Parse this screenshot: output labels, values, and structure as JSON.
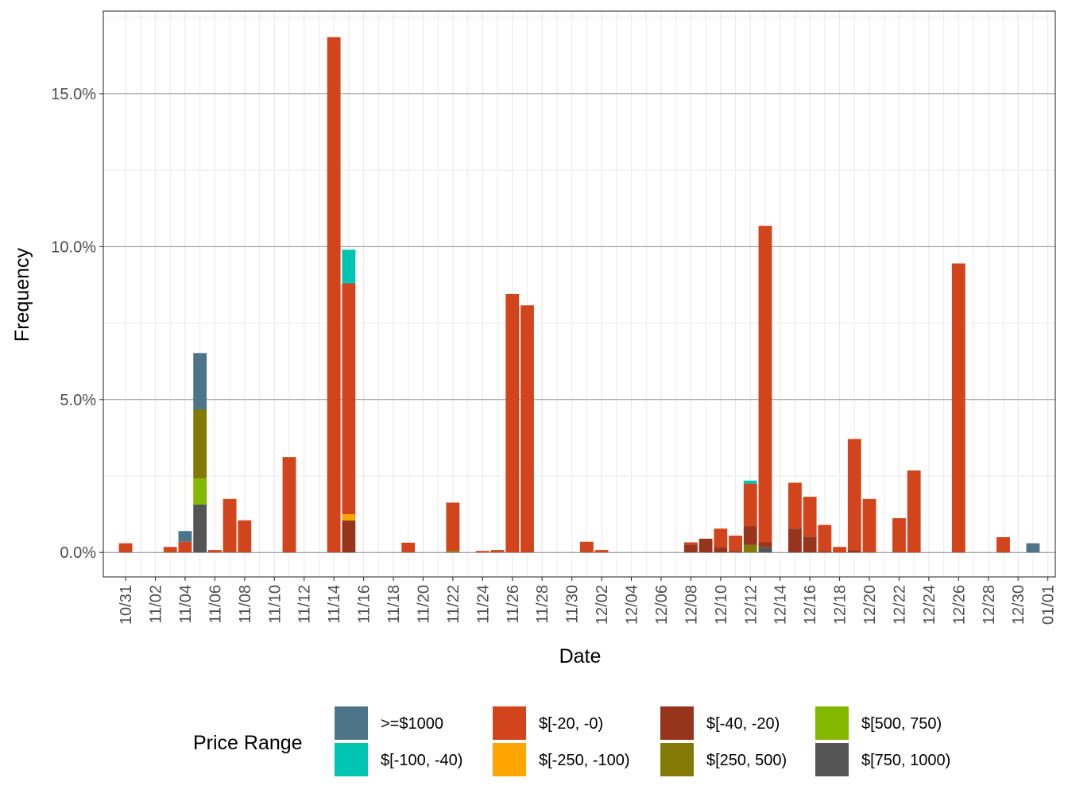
{
  "chart_data": {
    "type": "bar",
    "stacked": true,
    "xlabel": "Date",
    "ylabel": "Frequency",
    "x_tick_labels": [
      "10/31",
      "11/02",
      "11/04",
      "11/06",
      "11/08",
      "11/10",
      "11/12",
      "11/14",
      "11/16",
      "11/18",
      "11/20",
      "11/22",
      "11/24",
      "11/26",
      "11/28",
      "11/30",
      "12/02",
      "12/04",
      "12/06",
      "12/08",
      "12/10",
      "12/12",
      "12/14",
      "12/16",
      "12/18",
      "12/20",
      "12/22",
      "12/24",
      "12/26",
      "12/28",
      "12/30",
      "01/01"
    ],
    "x_range": [
      "10/30",
      "01/01"
    ],
    "y_ticks": [
      0,
      5,
      10,
      15
    ],
    "y_tick_labels": [
      "0.0%",
      "5.0%",
      "10.0%",
      "15.0%"
    ],
    "ylim": [
      -0.8,
      17.7
    ],
    "y_unit": "percent",
    "grid": true,
    "legend": {
      "title": "Price Range",
      "position": "bottom",
      "entries": [
        ">=$1000",
        "$[-100, -40)",
        "$[-20, -0)",
        "$[-250, -100)",
        "$[-40, -20)",
        "$[250, 500)",
        "$[500, 750)",
        "$[750, 1000)"
      ]
    },
    "series": [
      {
        "name": ">=$1000",
        "color": "#4e7489",
        "points": [
          [
            "11/04",
            0.35
          ],
          [
            "11/05",
            1.85
          ],
          [
            "12/31",
            0.3
          ]
        ]
      },
      {
        "name": "$[-100, -40)",
        "color": "#00c5b3",
        "points": [
          [
            "11/15",
            1.1
          ],
          [
            "12/12",
            0.1
          ]
        ]
      },
      {
        "name": "$[-20, -0)",
        "color": "#d2441c",
        "points": [
          [
            "10/31",
            0.3
          ],
          [
            "11/03",
            0.18
          ],
          [
            "11/04",
            0.35
          ],
          [
            "11/06",
            0.08
          ],
          [
            "11/07",
            1.75
          ],
          [
            "11/08",
            1.05
          ],
          [
            "11/11",
            3.12
          ],
          [
            "11/14",
            16.85
          ],
          [
            "11/15",
            7.55
          ],
          [
            "11/19",
            0.32
          ],
          [
            "11/22",
            1.58
          ],
          [
            "11/24",
            0.05
          ],
          [
            "11/25",
            0.08
          ],
          [
            "11/26",
            8.45
          ],
          [
            "11/27",
            8.08
          ],
          [
            "12/01",
            0.35
          ],
          [
            "12/02",
            0.08
          ],
          [
            "12/08",
            0.08
          ],
          [
            "12/10",
            0.6
          ],
          [
            "12/11",
            0.5
          ],
          [
            "12/12",
            1.4
          ],
          [
            "12/13",
            10.35
          ],
          [
            "12/15",
            1.5
          ],
          [
            "12/16",
            1.3
          ],
          [
            "12/17",
            0.85
          ],
          [
            "12/18",
            0.18
          ],
          [
            "12/19",
            3.63
          ],
          [
            "12/20",
            1.75
          ],
          [
            "12/22",
            1.12
          ],
          [
            "12/23",
            2.68
          ],
          [
            "12/26",
            9.45
          ],
          [
            "12/29",
            0.5
          ]
        ]
      },
      {
        "name": "$[-250, -100)",
        "color": "#ffa500",
        "points": [
          [
            "11/15",
            0.2
          ]
        ]
      },
      {
        "name": "$[-40, -20)",
        "color": "#96351c",
        "points": [
          [
            "11/15",
            1.05
          ],
          [
            "12/08",
            0.25
          ],
          [
            "12/09",
            0.45
          ],
          [
            "12/10",
            0.18
          ],
          [
            "12/11",
            0.05
          ],
          [
            "12/12",
            0.6
          ],
          [
            "12/13",
            0.15
          ],
          [
            "12/15",
            0.78
          ],
          [
            "12/16",
            0.52
          ],
          [
            "12/17",
            0.05
          ],
          [
            "12/19",
            0.08
          ]
        ]
      },
      {
        "name": "$[250, 500)",
        "color": "#827a04",
        "points": [
          [
            "11/05",
            2.25
          ],
          [
            "11/22",
            0.05
          ],
          [
            "12/12",
            0.25
          ]
        ]
      },
      {
        "name": "$[500, 750)",
        "color": "#85b800",
        "points": [
          [
            "11/05",
            0.85
          ]
        ]
      },
      {
        "name": "$[750, 1000)",
        "color": "#555555",
        "points": [
          [
            "11/05",
            1.57
          ],
          [
            "12/13",
            0.18
          ]
        ]
      }
    ]
  }
}
